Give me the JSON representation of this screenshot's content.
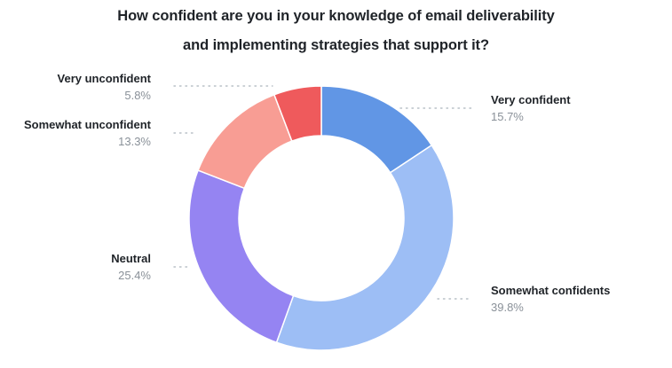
{
  "chart": {
    "title_line1": "How confident are you in your knowledge of email deliverability",
    "title_line2": "and implementing strategies that support it?"
  },
  "labels": {
    "very_confident": {
      "name": "Very confident",
      "pct": "15.7%"
    },
    "somewhat_confidents": {
      "name": "Somewhat confidents",
      "pct": "39.8%"
    },
    "neutral": {
      "name": "Neutral",
      "pct": "25.4%"
    },
    "somewhat_unconfident": {
      "name": "Somewhat unconfident",
      "pct": "13.3%"
    },
    "very_unconfident": {
      "name": "Very unconfident",
      "pct": "5.8%"
    }
  },
  "chart_data": {
    "type": "pie",
    "subtype": "donut",
    "title": "How confident are you in your knowledge of email deliverability and implementing strategies that support it?",
    "categories": [
      "Very confident",
      "Somewhat confidents",
      "Neutral",
      "Somewhat unconfident",
      "Very unconfident"
    ],
    "values": [
      15.7,
      39.8,
      25.4,
      13.3,
      5.8
    ],
    "unit": "%",
    "colors": [
      "#6196e5",
      "#9dbef5",
      "#9584f2",
      "#f89d94",
      "#ef5a5c"
    ],
    "start_angle_deg": 0,
    "direction": "clockwise",
    "legend_position": "outside-labels-with-leaders"
  }
}
